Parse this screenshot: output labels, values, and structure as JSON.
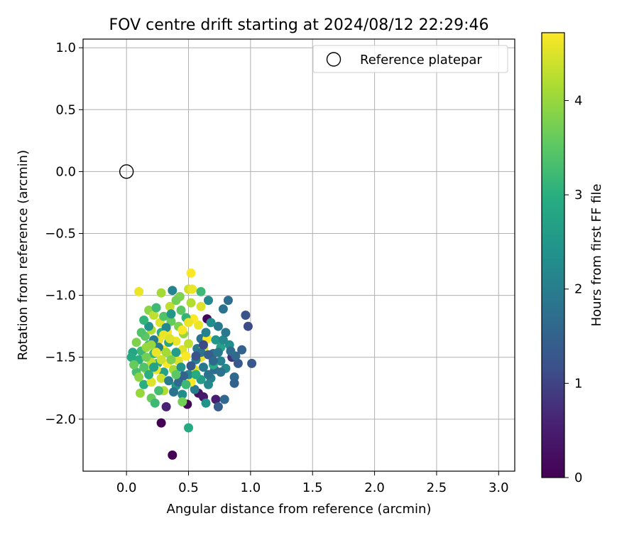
{
  "chart_data": {
    "type": "scatter",
    "title": "FOV centre drift starting at 2024/08/12 22:29:46",
    "xlabel": "Angular distance from reference (arcmin)",
    "ylabel": "Rotation from reference (arcmin)",
    "xlim": [
      -0.35,
      3.13
    ],
    "ylim": [
      -2.42,
      1.07
    ],
    "xticks": [
      0.0,
      0.5,
      1.0,
      1.5,
      2.0,
      2.5,
      3.0
    ],
    "xtick_labels": [
      "0.0",
      "0.5",
      "1.0",
      "1.5",
      "2.0",
      "2.5",
      "3.0"
    ],
    "yticks": [
      1.0,
      0.5,
      0.0,
      -0.5,
      -1.0,
      -1.5,
      -2.0
    ],
    "ytick_labels": [
      "1.0",
      "0.5",
      "0.0",
      "−0.5",
      "−1.0",
      "−1.5",
      "−2.0"
    ],
    "grid": true,
    "legend": {
      "placement": "top-right",
      "entries": [
        {
          "label": "Reference platepar",
          "marker": "open-circle"
        }
      ]
    },
    "reference_point": {
      "x": 0.0,
      "y": 0.0
    },
    "colorbar": {
      "label": "Hours from first FF file",
      "range": [
        0,
        4.72
      ],
      "ticks": [
        0,
        1,
        2,
        3,
        4
      ],
      "tick_labels": [
        "0",
        "1",
        "2",
        "3",
        "4"
      ],
      "colormap": "viridis"
    },
    "points": [
      [
        0.37,
        -2.29,
        0.0
      ],
      [
        0.28,
        -2.03,
        0.0
      ],
      [
        0.49,
        -1.88,
        0.1
      ],
      [
        0.65,
        -1.19,
        0.1
      ],
      [
        0.58,
        -1.79,
        0.3
      ],
      [
        0.32,
        -1.9,
        0.6
      ],
      [
        0.72,
        -1.84,
        0.5
      ],
      [
        0.62,
        -1.82,
        0.4
      ],
      [
        0.85,
        -1.5,
        0.8
      ],
      [
        0.96,
        -1.16,
        1.2
      ],
      [
        0.98,
        -1.25,
        1.1
      ],
      [
        1.01,
        -1.55,
        1.3
      ],
      [
        0.9,
        -1.55,
        1.3
      ],
      [
        0.93,
        -1.44,
        1.5
      ],
      [
        0.82,
        -1.04,
        1.7
      ],
      [
        0.88,
        -1.49,
        1.6
      ],
      [
        0.87,
        -1.66,
        1.6
      ],
      [
        0.87,
        -1.71,
        1.5
      ],
      [
        0.74,
        -1.9,
        1.4
      ],
      [
        0.79,
        -1.84,
        1.6
      ],
      [
        0.78,
        -1.11,
        1.8
      ],
      [
        0.74,
        -1.25,
        1.9
      ],
      [
        0.7,
        -1.47,
        1.7
      ],
      [
        0.64,
        -1.87,
        2.4
      ],
      [
        0.5,
        -2.07,
        2.9
      ],
      [
        0.66,
        -1.04,
        2.2
      ],
      [
        0.37,
        -0.96,
        2.1
      ],
      [
        0.57,
        -1.43,
        1.9
      ],
      [
        0.6,
        -1.35,
        1.8
      ],
      [
        0.62,
        -1.58,
        1.9
      ],
      [
        0.68,
        -1.67,
        2.1
      ],
      [
        0.8,
        -1.59,
        2.2
      ],
      [
        0.83,
        -1.4,
        2.3
      ],
      [
        0.76,
        -1.53,
        2.1
      ],
      [
        0.71,
        -1.6,
        1.7
      ],
      [
        0.66,
        -1.64,
        1.8
      ],
      [
        0.55,
        -1.76,
        2.0
      ],
      [
        0.45,
        -1.8,
        2.3
      ],
      [
        0.4,
        -1.73,
        2.5
      ],
      [
        0.3,
        -1.62,
        2.7
      ],
      [
        0.25,
        -1.55,
        2.9
      ],
      [
        0.22,
        -1.47,
        3.1
      ],
      [
        0.18,
        -1.4,
        3.3
      ],
      [
        0.15,
        -1.33,
        3.5
      ],
      [
        0.12,
        -1.45,
        3.2
      ],
      [
        0.1,
        -1.52,
        3.0
      ],
      [
        0.05,
        -1.46,
        2.8
      ],
      [
        0.04,
        -1.5,
        2.9
      ],
      [
        0.08,
        -1.62,
        3.3
      ],
      [
        0.14,
        -1.72,
        3.0
      ],
      [
        0.2,
        -1.83,
        3.6
      ],
      [
        0.23,
        -1.87,
        3.2
      ],
      [
        0.11,
        -1.79,
        4.0
      ],
      [
        0.3,
        -1.77,
        4.2
      ],
      [
        0.45,
        -1.86,
        3.7
      ],
      [
        0.52,
        -1.7,
        4.7
      ],
      [
        0.55,
        -1.6,
        4.5
      ],
      [
        0.6,
        -1.5,
        4.6
      ],
      [
        0.62,
        -1.43,
        4.4
      ],
      [
        0.65,
        -1.35,
        4.7
      ],
      [
        0.58,
        -1.24,
        4.6
      ],
      [
        0.54,
        -1.19,
        4.7
      ],
      [
        0.52,
        -1.06,
        4.2
      ],
      [
        0.5,
        -0.95,
        4.4
      ],
      [
        0.53,
        -0.95,
        4.6
      ],
      [
        0.52,
        -0.82,
        4.7
      ],
      [
        0.6,
        -1.09,
        4.5
      ],
      [
        0.6,
        -0.97,
        3.2
      ],
      [
        0.43,
        -1.01,
        3.8
      ],
      [
        0.35,
        -1.09,
        4.3
      ],
      [
        0.28,
        -0.98,
        4.1
      ],
      [
        0.1,
        -0.97,
        4.6
      ],
      [
        0.18,
        -1.12,
        3.9
      ],
      [
        0.22,
        -1.16,
        4.3
      ],
      [
        0.27,
        -1.22,
        4.5
      ],
      [
        0.33,
        -1.3,
        4.7
      ],
      [
        0.4,
        -1.37,
        4.6
      ],
      [
        0.45,
        -1.44,
        4.5
      ],
      [
        0.37,
        -1.49,
        4.4
      ],
      [
        0.3,
        -1.44,
        4.7
      ],
      [
        0.26,
        -1.36,
        4.6
      ],
      [
        0.2,
        -1.28,
        4.2
      ],
      [
        0.16,
        -1.42,
        4.0
      ],
      [
        0.2,
        -1.54,
        4.3
      ],
      [
        0.24,
        -1.6,
        4.6
      ],
      [
        0.28,
        -1.67,
        4.4
      ],
      [
        0.33,
        -1.55,
        4.7
      ],
      [
        0.38,
        -1.6,
        4.1
      ],
      [
        0.42,
        -1.53,
        4.5
      ],
      [
        0.48,
        -1.49,
        4.7
      ],
      [
        0.5,
        -1.39,
        4.3
      ],
      [
        0.46,
        -1.31,
        4.0
      ],
      [
        0.42,
        -1.25,
        3.8
      ],
      [
        0.36,
        -1.21,
        3.6
      ],
      [
        0.3,
        -1.17,
        3.4
      ],
      [
        0.24,
        -1.1,
        3.2
      ],
      [
        0.28,
        -1.3,
        3.0
      ],
      [
        0.34,
        -1.38,
        2.8
      ],
      [
        0.4,
        -1.46,
        2.6
      ],
      [
        0.44,
        -1.58,
        2.4
      ],
      [
        0.5,
        -1.64,
        2.2
      ],
      [
        0.56,
        -1.52,
        2.0
      ],
      [
        0.6,
        -1.46,
        1.8
      ],
      [
        0.64,
        -1.3,
        2.1
      ],
      [
        0.68,
        -1.22,
        2.3
      ],
      [
        0.72,
        -1.36,
        2.5
      ],
      [
        0.76,
        -1.42,
        2.7
      ],
      [
        0.7,
        -1.56,
        2.9
      ],
      [
        0.48,
        -1.18,
        3.1
      ],
      [
        0.44,
        -1.12,
        3.5
      ],
      [
        0.4,
        -1.04,
        3.7
      ],
      [
        0.36,
        -1.15,
        2.5
      ],
      [
        0.32,
        -1.26,
        2.2
      ],
      [
        0.26,
        -1.42,
        2.0
      ],
      [
        0.22,
        -1.36,
        1.9
      ],
      [
        0.18,
        -1.25,
        2.4
      ],
      [
        0.14,
        -1.2,
        3.1
      ],
      [
        0.12,
        -1.3,
        3.4
      ],
      [
        0.08,
        -1.38,
        3.8
      ],
      [
        0.06,
        -1.56,
        3.6
      ],
      [
        0.1,
        -1.66,
        3.9
      ],
      [
        0.16,
        -1.6,
        4.2
      ],
      [
        0.2,
        -1.7,
        4.5
      ],
      [
        0.26,
        -1.77,
        3.3
      ],
      [
        0.34,
        -1.69,
        2.0
      ],
      [
        0.38,
        -1.78,
        1.8
      ],
      [
        0.42,
        -1.7,
        1.6
      ],
      [
        0.46,
        -1.65,
        1.5
      ],
      [
        0.52,
        -1.57,
        1.3
      ],
      [
        0.56,
        -1.49,
        1.2
      ],
      [
        0.62,
        -1.4,
        1.1
      ],
      [
        0.66,
        -1.48,
        1.4
      ],
      [
        0.7,
        -1.53,
        1.6
      ],
      [
        0.74,
        -1.46,
        1.9
      ],
      [
        0.78,
        -1.36,
        2.2
      ],
      [
        0.8,
        -1.3,
        1.9
      ],
      [
        0.84,
        -1.45,
        1.7
      ],
      [
        0.76,
        -1.62,
        1.8
      ],
      [
        0.66,
        -1.72,
        2.2
      ],
      [
        0.6,
        -1.68,
        2.6
      ],
      [
        0.56,
        -1.64,
        2.9
      ],
      [
        0.48,
        -1.72,
        3.2
      ],
      [
        0.4,
        -1.64,
        3.5
      ],
      [
        0.36,
        -1.52,
        3.8
      ],
      [
        0.32,
        -1.46,
        4.1
      ],
      [
        0.28,
        -1.52,
        4.4
      ],
      [
        0.24,
        -1.46,
        4.6
      ],
      [
        0.2,
        -1.4,
        4.0
      ],
      [
        0.16,
        -1.5,
        3.7
      ],
      [
        0.14,
        -1.58,
        3.4
      ],
      [
        0.18,
        -1.64,
        3.0
      ],
      [
        0.22,
        -1.58,
        2.7
      ],
      [
        0.3,
        -1.32,
        4.6
      ],
      [
        0.35,
        -1.35,
        4.5
      ],
      [
        0.45,
        -1.28,
        4.7
      ],
      [
        0.5,
        -1.22,
        4.6
      ]
    ]
  }
}
